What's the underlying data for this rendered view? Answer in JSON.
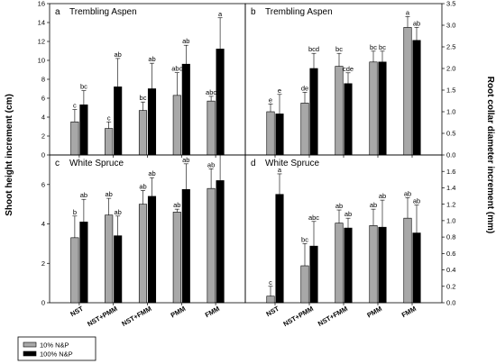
{
  "figure": {
    "ylabel_left": "Shoot height increment (cm)",
    "ylabel_right": "Root collar diameter increment (mm)",
    "categories": [
      "NST",
      "NST+PMM",
      "NST+FMM",
      "PMM",
      "FMM"
    ],
    "legend": [
      "10% N&P",
      "100% N&P"
    ],
    "colors": {
      "series1": "#a8a8a8",
      "series2": "#000000"
    }
  },
  "chart_data": [
    {
      "type": "bar",
      "panel": "a",
      "title": "Trembling Aspen",
      "categories": [
        "NST",
        "NST+PMM",
        "NST+FMM",
        "PMM",
        "FMM"
      ],
      "ylim": [
        0,
        16
      ],
      "yticks": [
        0,
        2,
        4,
        6,
        8,
        10,
        12,
        14,
        16
      ],
      "series": [
        {
          "name": "10% N&P",
          "values": [
            3.5,
            2.8,
            4.7,
            6.3,
            5.7
          ],
          "errors": [
            1.3,
            0.7,
            0.9,
            2.4,
            0.5
          ],
          "letters": [
            "c",
            "c",
            "bc",
            "abc",
            "abc"
          ]
        },
        {
          "name": "100% N&P",
          "values": [
            5.3,
            7.2,
            7.0,
            9.6,
            11.2
          ],
          "errors": [
            1.5,
            3.0,
            2.7,
            2.0,
            3.3
          ],
          "letters": [
            "bc",
            "ab",
            "ab",
            "ab",
            "a"
          ]
        }
      ]
    },
    {
      "type": "bar",
      "panel": "b",
      "title": "Trembling Aspen",
      "categories": [
        "NST",
        "NST+PMM",
        "NST+FMM",
        "PMM",
        "FMM"
      ],
      "ylim": [
        0,
        3.5
      ],
      "yticks": [
        0.0,
        0.5,
        1.0,
        1.5,
        2.0,
        2.5,
        3.0,
        3.5
      ],
      "series": [
        {
          "name": "10% N&P",
          "values": [
            1.0,
            1.2,
            2.05,
            2.15,
            2.95
          ],
          "errors": [
            0.18,
            0.25,
            0.3,
            0.25,
            0.25
          ],
          "letters": [
            "e",
            "de",
            "bc",
            "bc",
            "a"
          ]
        },
        {
          "name": "100% N&P",
          "values": [
            0.95,
            2.0,
            1.65,
            2.15,
            2.65
          ],
          "errors": [
            0.45,
            0.35,
            0.25,
            0.25,
            0.3
          ],
          "letters": [
            "e",
            "bcd",
            "cde",
            "bc",
            "ab"
          ]
        }
      ]
    },
    {
      "type": "bar",
      "panel": "c",
      "title": "White Spruce",
      "categories": [
        "NST",
        "NST+PMM",
        "NST+FMM",
        "PMM",
        "FMM"
      ],
      "ylim": [
        0,
        7.5
      ],
      "yticks": [
        0,
        2,
        4,
        6
      ],
      "series": [
        {
          "name": "10% N&P",
          "values": [
            3.3,
            4.45,
            5.0,
            4.6,
            5.8
          ],
          "errors": [
            1.1,
            0.85,
            0.7,
            0.15,
            1.0
          ],
          "letters": [
            "b",
            "ab",
            "ab",
            "ab",
            "ab"
          ]
        },
        {
          "name": "100% N&P",
          "values": [
            4.1,
            3.4,
            5.4,
            5.75,
            6.2
          ],
          "errors": [
            1.15,
            1.0,
            0.95,
            1.3,
            1.35
          ],
          "letters": [
            "ab",
            "ab",
            "ab",
            "ab",
            "ab"
          ]
        }
      ]
    },
    {
      "type": "bar",
      "panel": "d",
      "title": "White Spruce",
      "categories": [
        "NST",
        "NST+PMM",
        "NST+FMM",
        "PMM",
        "FMM"
      ],
      "ylim": [
        0,
        1.8
      ],
      "yticks": [
        0.0,
        0.2,
        0.4,
        0.6,
        0.8,
        1.0,
        1.2,
        1.4,
        1.6
      ],
      "series": [
        {
          "name": "10% N&P",
          "values": [
            0.08,
            0.45,
            0.97,
            0.94,
            1.03
          ],
          "errors": [
            0.12,
            0.27,
            0.16,
            0.2,
            0.25
          ],
          "letters": [
            "c",
            "bc",
            "ab",
            "ab",
            "ab"
          ]
        },
        {
          "name": "100% N&P",
          "values": [
            1.32,
            0.69,
            0.91,
            0.92,
            0.85
          ],
          "errors": [
            0.25,
            0.3,
            0.12,
            0.33,
            0.34
          ],
          "letters": [
            "a",
            "abc",
            "ab",
            "ab",
            "ab"
          ]
        }
      ]
    }
  ]
}
